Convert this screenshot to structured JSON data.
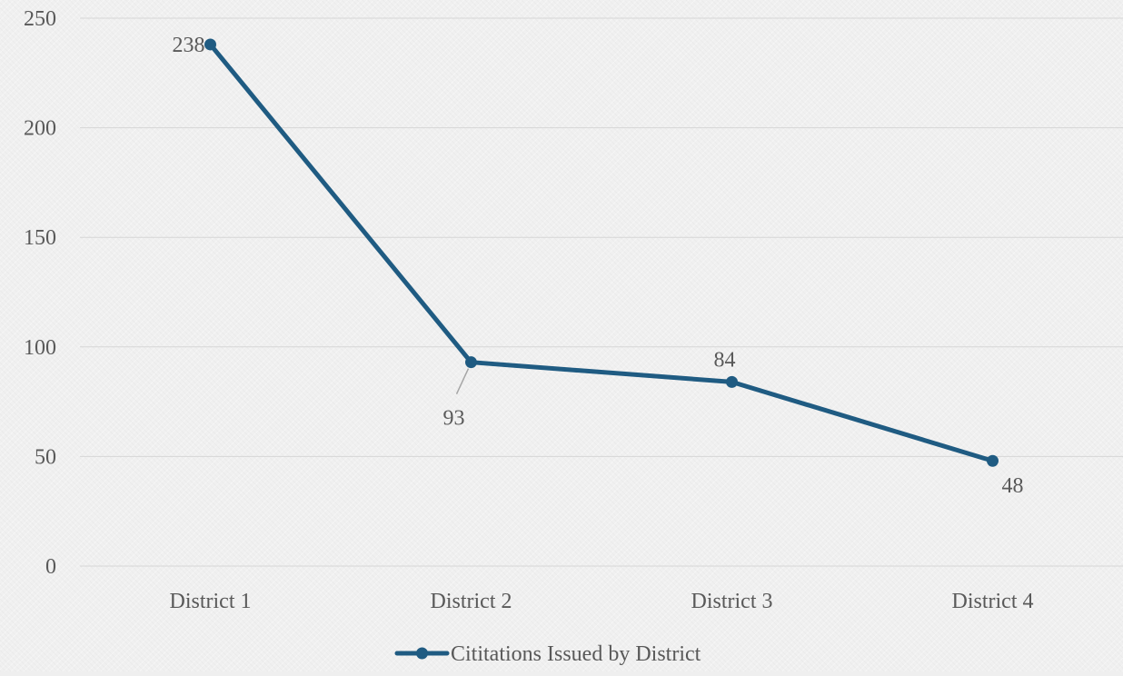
{
  "chart_data": {
    "type": "line",
    "categories": [
      "District 1",
      "District 2",
      "District 3",
      "District 4"
    ],
    "series": [
      {
        "name": "Cititations Issued by District",
        "values": [
          238,
          93,
          84,
          48
        ],
        "color": "#1f5b82"
      }
    ],
    "data_labels": [
      "238",
      "93",
      "84",
      "48"
    ],
    "ylim": [
      0,
      250
    ],
    "yticks": [
      "0",
      "50",
      "100",
      "150",
      "200",
      "250"
    ],
    "title": "",
    "xlabel": "",
    "ylabel": "",
    "grid": true,
    "legend_position": "bottom",
    "colors": {
      "background": "#f0f0f0",
      "gridline": "#d6d6d6",
      "text": "#595959",
      "leader_line": "#a6a6a6"
    }
  }
}
